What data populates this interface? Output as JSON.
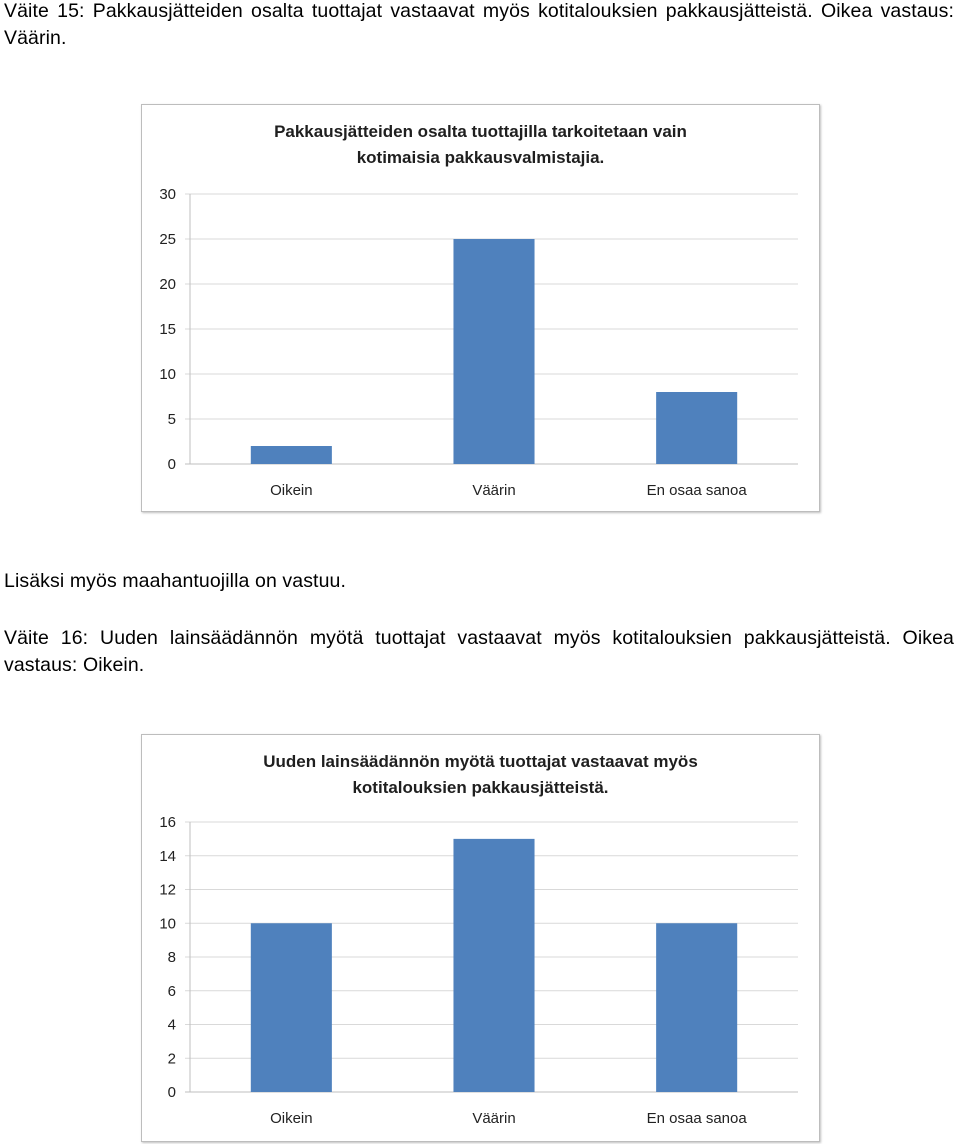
{
  "paragraphs": {
    "p1": "Väite 15: Pakkausjätteiden osalta tuottajat vastaavat myös kotitalouksien pakkausjätteistä. Oikea vastaus: Väärin.",
    "p2": "Lisäksi myös maahantuojilla on vastuu.",
    "p3": "Väite 16: Uuden lainsäädännön myötä tuottajat vastaavat myös kotitalouksien pakkausjätteistä. Oikea vastaus: Oikein."
  },
  "colors": {
    "bar": "#4f81bd",
    "grid": "#d9d9d9",
    "axis": "#bfbfbf"
  },
  "chart_data": [
    {
      "type": "bar",
      "title_lines": [
        "Pakkausjätteiden osalta tuottajilla tarkoitetaan vain",
        "kotimaisia pakkausvalmistajia."
      ],
      "categories": [
        "Oikein",
        "Väärin",
        "En osaa sanoa"
      ],
      "values": [
        2,
        25,
        8
      ],
      "ylim": [
        0,
        30
      ],
      "yticks": [
        0,
        5,
        10,
        15,
        20,
        25,
        30
      ],
      "grid": true,
      "xlabel": "",
      "ylabel": ""
    },
    {
      "type": "bar",
      "title_lines": [
        "Uuden lainsäädännön myötä tuottajat vastaavat myös",
        "kotitalouksien pakkausjätteistä."
      ],
      "categories": [
        "Oikein",
        "Väärin",
        "En osaa sanoa"
      ],
      "values": [
        10,
        15,
        10
      ],
      "ylim": [
        0,
        16
      ],
      "yticks": [
        0,
        2,
        4,
        6,
        8,
        10,
        12,
        14,
        16
      ],
      "grid": true,
      "xlabel": "",
      "ylabel": ""
    }
  ]
}
